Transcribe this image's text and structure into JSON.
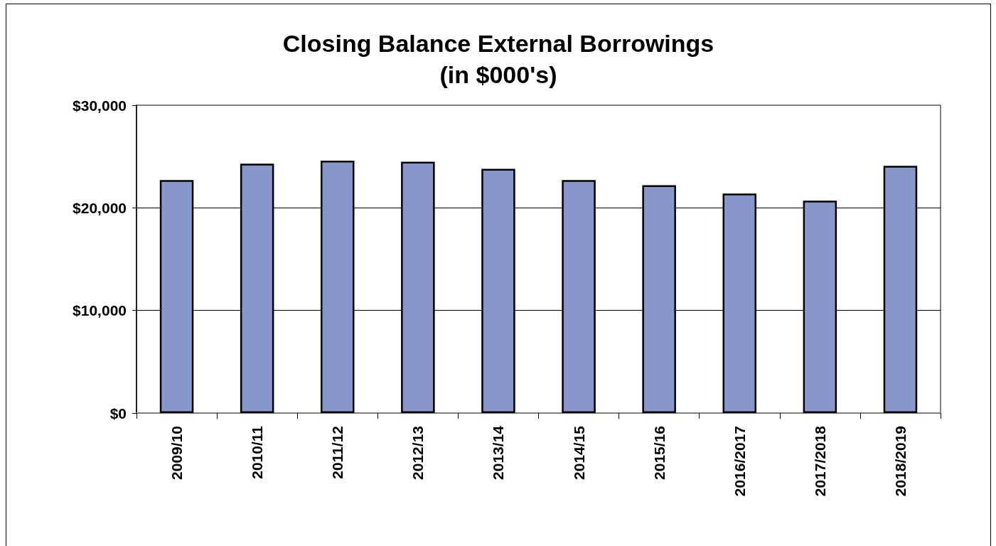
{
  "chart_data": {
    "type": "bar",
    "title": "Closing Balance External Borrowings",
    "subtitle": "(in $000's)",
    "categories": [
      "2009/10",
      "2010/11",
      "2011/12",
      "2012/13",
      "2013/14",
      "2014/15",
      "2015/16",
      "2016/2017",
      "2017/2018",
      "2018/2019"
    ],
    "values": [
      22700,
      24300,
      24600,
      24500,
      23800,
      22700,
      22200,
      21400,
      20700,
      24100
    ],
    "color": "#8796cb",
    "ylim": [
      0,
      30000
    ],
    "yticks": [
      {
        "value": 0,
        "label": "$0"
      },
      {
        "value": 10000,
        "label": "$10,000"
      },
      {
        "value": 20000,
        "label": "$20,000"
      },
      {
        "value": 30000,
        "label": "$30,000"
      }
    ],
    "grid": "y"
  }
}
